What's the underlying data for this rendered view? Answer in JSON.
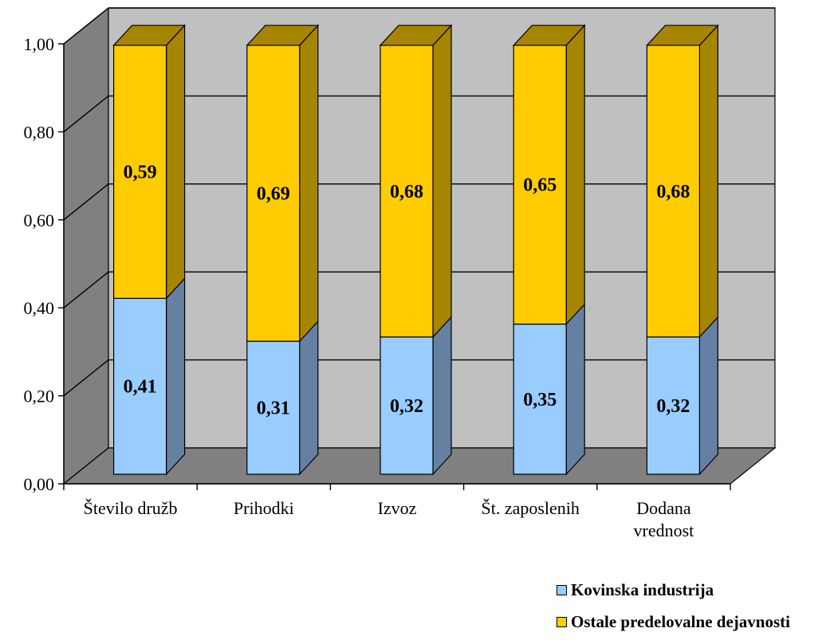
{
  "chart_data": {
    "type": "bar",
    "stacked": true,
    "three_d": true,
    "categories": [
      [
        "Število družb"
      ],
      [
        "Prihodki"
      ],
      [
        "Izvoz"
      ],
      [
        "Št. zaposlenih"
      ],
      [
        "Dodana",
        "vrednost"
      ]
    ],
    "series": [
      {
        "name": "Kovinska industrija",
        "values": [
          0.41,
          0.31,
          0.32,
          0.35,
          0.32
        ],
        "labels": [
          "0,41",
          "0,31",
          "0,32",
          "0,35",
          "0,32"
        ],
        "color": "#99CCFF",
        "side_color": "#6680A3"
      },
      {
        "name": "Ostale predelovalne dejavnosti",
        "values": [
          0.59,
          0.69,
          0.68,
          0.65,
          0.68
        ],
        "labels": [
          "0,59",
          "0,69",
          "0,68",
          "0,65",
          "0,68"
        ],
        "color": "#FFCC00",
        "side_color": "#A68500"
      }
    ],
    "ylim": [
      0,
      1
    ],
    "yticks": [
      "0,00",
      "0,20",
      "0,40",
      "0,60",
      "0,80",
      "1,00"
    ],
    "grid": true,
    "legend_position": "bottom-right",
    "colors": {
      "back_wall": "#C0C0C0",
      "side_wall": "#808080",
      "floor": "#808080"
    }
  },
  "legend": [
    {
      "label": "Kovinska industrija",
      "color": "#99CCFF"
    },
    {
      "label": "Ostale predelovalne dejavnosti",
      "color": "#FFCC00"
    }
  ]
}
